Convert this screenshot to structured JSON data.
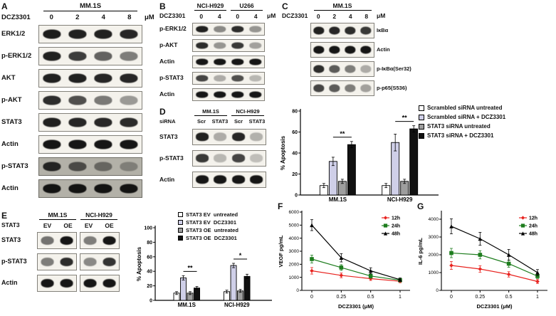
{
  "panel_labels": {
    "A": "A",
    "B": "B",
    "C": "C",
    "D": "D",
    "E": "E",
    "F": "F",
    "G": "G"
  },
  "blots": {
    "A": {
      "cell_lines": [
        {
          "name": "MM.1S",
          "span": 4
        }
      ],
      "header_left": "DCZ3301",
      "lane_labels": [
        "0",
        "2",
        "4",
        "8"
      ],
      "unit": "μM",
      "label_side": "left",
      "rows": [
        {
          "label": "ERK1/2",
          "bands": [
            0.92,
            0.9,
            0.9,
            0.88
          ]
        },
        {
          "label": "p-ERK1/2",
          "bands": [
            0.9,
            0.78,
            0.62,
            0.5
          ]
        },
        {
          "label": "AKT",
          "bands": [
            0.9,
            0.9,
            0.88,
            0.88
          ]
        },
        {
          "label": "p-AKT",
          "bands": [
            0.85,
            0.7,
            0.52,
            0.38
          ]
        },
        {
          "label": "STAT3",
          "bands": [
            0.9,
            0.88,
            0.87,
            0.86
          ]
        },
        {
          "label": "Actin",
          "bands": [
            0.95,
            0.95,
            0.95,
            0.95
          ]
        },
        {
          "label": "p-STAT3",
          "bands": [
            0.85,
            0.62,
            0.45,
            0.3
          ],
          "dark_bg": true
        },
        {
          "label": "Actin",
          "bands": [
            0.95,
            0.95,
            0.95,
            0.95
          ],
          "dark_bg": true
        }
      ]
    },
    "B": {
      "cell_lines": [
        {
          "name": "NCI-H929",
          "span": 2
        },
        {
          "name": "U266",
          "span": 2
        }
      ],
      "header_left": "DCZ3301",
      "lane_labels": [
        "0",
        "4",
        "0",
        "4"
      ],
      "unit": "μM",
      "label_side": "left",
      "rows": [
        {
          "label": "p-ERK1/2",
          "bands": [
            0.9,
            0.45,
            0.85,
            0.4
          ]
        },
        {
          "label": "p-AKT",
          "bands": [
            0.85,
            0.4,
            0.8,
            0.35
          ]
        },
        {
          "label": "Actin",
          "bands": [
            0.95,
            0.95,
            0.95,
            0.95
          ]
        },
        {
          "label": "p-STAT3",
          "bands": [
            0.75,
            0.3,
            0.7,
            0.25
          ]
        },
        {
          "label": "Actin",
          "bands": [
            0.95,
            0.95,
            0.95,
            0.95
          ]
        }
      ]
    },
    "C": {
      "cell_lines": [
        {
          "name": "MM.1S",
          "span": 4
        }
      ],
      "header_left": "DCZ3301",
      "lane_labels": [
        "0",
        "2",
        "4",
        "8"
      ],
      "unit": "μM",
      "label_side": "right",
      "rows": [
        {
          "label": "IκBα",
          "bands": [
            0.9,
            0.88,
            0.85,
            0.8
          ]
        },
        {
          "label": "Actin",
          "bands": [
            0.95,
            0.95,
            0.95,
            0.95
          ]
        },
        {
          "label": "p-IκBα(Ser32)",
          "bands": [
            0.85,
            0.65,
            0.5,
            0.3
          ]
        },
        {
          "label": "p-p65(S536)",
          "bands": [
            0.75,
            0.65,
            0.5,
            0.35
          ]
        }
      ]
    },
    "D": {
      "cell_lines": [
        {
          "name": "MM.1S",
          "span": 2
        },
        {
          "name": "NCI-H929",
          "span": 2
        }
      ],
      "header_left": "siRNA",
      "lane_labels": [
        "Scr",
        "STAT3",
        "Scr",
        "STAT3"
      ],
      "label_side": "left",
      "rows": [
        {
          "label": "STAT3",
          "bands": [
            0.9,
            0.3,
            0.88,
            0.28
          ]
        },
        {
          "label": "p-STAT3",
          "bands": [
            0.8,
            0.25,
            0.75,
            0.22
          ]
        },
        {
          "label": "Actin",
          "bands": [
            0.95,
            0.95,
            0.95,
            0.95
          ]
        }
      ]
    },
    "E": {
      "cell_lines": [
        {
          "name": "MM.1S",
          "span": 2
        },
        {
          "name": "NCI-H929",
          "span": 2
        }
      ],
      "header_left": "STAT3",
      "lane_labels": [
        "EV",
        "OE",
        "EV",
        "OE"
      ],
      "label_side": "left",
      "split": 2,
      "rows": [
        {
          "label": "STAT3",
          "bands": [
            0.55,
            0.95,
            0.5,
            0.95
          ]
        },
        {
          "label": "p-STAT3",
          "bands": [
            0.5,
            0.85,
            0.45,
            0.82
          ]
        },
        {
          "label": "Actin",
          "bands": [
            0.95,
            0.95,
            0.95,
            0.95
          ]
        }
      ]
    }
  },
  "chart_data": [
    {
      "id": "apoptosis_sirna",
      "type": "bar",
      "categories": [
        "MM.1S",
        "NCI-H929"
      ],
      "ylabel": "% Apoptosis",
      "ylim": [
        0,
        80
      ],
      "yticks": [
        0,
        20,
        40,
        60,
        80
      ],
      "series": [
        {
          "name": "Scrambled siRNA untreated",
          "color": "#ffffff",
          "values": [
            9,
            9
          ],
          "errors": [
            2,
            2
          ]
        },
        {
          "name": "Scrambled siRNA + DCZ3301",
          "color": "#cfcfe8",
          "values": [
            32,
            50
          ],
          "errors": [
            4,
            8
          ]
        },
        {
          "name": "STAT3 siRNA untreated",
          "color": "#9e9e9e",
          "values": [
            13,
            13
          ],
          "errors": [
            2,
            2
          ]
        },
        {
          "name": "STAT3 siRNA + DCZ3301",
          "color": "#111111",
          "values": [
            48,
            63
          ],
          "errors": [
            3,
            3
          ]
        }
      ],
      "significance": [
        {
          "category": "MM.1S",
          "label": "**"
        },
        {
          "category": "NCI-H929",
          "label": "**"
        }
      ],
      "legend_position": "right"
    },
    {
      "id": "apoptosis_stat3",
      "type": "bar",
      "categories": [
        "MM.1S",
        "NCI-H929"
      ],
      "ylabel": "% Apoptosis",
      "ylim": [
        0,
        100
      ],
      "yticks": [
        0,
        20,
        40,
        60,
        80,
        100
      ],
      "series": [
        {
          "name": "STAT3 EV  untreated",
          "color": "#ffffff",
          "values": [
            10,
            12
          ],
          "errors": [
            2,
            2
          ]
        },
        {
          "name": "STAT3 EV  DCZ3301",
          "color": "#cfcfe8",
          "values": [
            31,
            48
          ],
          "errors": [
            3,
            3
          ]
        },
        {
          "name": "STAT3 OE  untreated",
          "color": "#9e9e9e",
          "values": [
            10,
            13
          ],
          "errors": [
            2,
            2
          ]
        },
        {
          "name": "STAT3 OE  DCZ3301",
          "color": "#111111",
          "values": [
            17,
            33
          ],
          "errors": [
            2,
            3
          ]
        }
      ],
      "significance": [
        {
          "category": "MM.1S",
          "label": "**"
        },
        {
          "category": "NCI-H929",
          "label": "*"
        }
      ],
      "legend_position": "top-right"
    },
    {
      "id": "vegf",
      "type": "line",
      "xlabel": "DCZ3301 (μM)",
      "ylabel": "VEGF pg/mL",
      "x": [
        "0",
        "0.25",
        "0.5",
        "1"
      ],
      "ylim": [
        0,
        6000
      ],
      "yticks": [
        0,
        1000,
        2000,
        3000,
        4000,
        5000,
        6000
      ],
      "series": [
        {
          "name": "12h",
          "color": "#e8231f",
          "marker": "diamond",
          "values": [
            1500,
            1150,
            900,
            700
          ],
          "errors": [
            250,
            180,
            140,
            110
          ]
        },
        {
          "name": "24h",
          "color": "#1e7d1e",
          "marker": "square",
          "values": [
            2400,
            1750,
            1100,
            780
          ],
          "errors": [
            300,
            220,
            170,
            120
          ]
        },
        {
          "name": "48h",
          "color": "#000000",
          "marker": "triangle",
          "values": [
            5000,
            2500,
            1500,
            820
          ],
          "errors": [
            420,
            320,
            230,
            130
          ]
        }
      ]
    },
    {
      "id": "il6",
      "type": "line",
      "xlabel": "DCZ3301 (μM)",
      "ylabel": "IL-6 pg/mL",
      "x": [
        "0",
        "0.25",
        "0.5",
        "1"
      ],
      "ylim": [
        0,
        4400
      ],
      "yticks": [
        0,
        1000,
        2000,
        3000,
        4000
      ],
      "series": [
        {
          "name": "12h",
          "color": "#e8231f",
          "marker": "diamond",
          "values": [
            1400,
            1200,
            900,
            500
          ],
          "errors": [
            220,
            180,
            150,
            110
          ]
        },
        {
          "name": "24h",
          "color": "#1e7d1e",
          "marker": "square",
          "values": [
            2100,
            2000,
            1500,
            800
          ],
          "errors": [
            260,
            230,
            200,
            130
          ]
        },
        {
          "name": "48h",
          "color": "#000000",
          "marker": "triangle",
          "values": [
            3600,
            2900,
            2000,
            1000
          ],
          "errors": [
            420,
            360,
            300,
            170
          ]
        }
      ]
    }
  ]
}
